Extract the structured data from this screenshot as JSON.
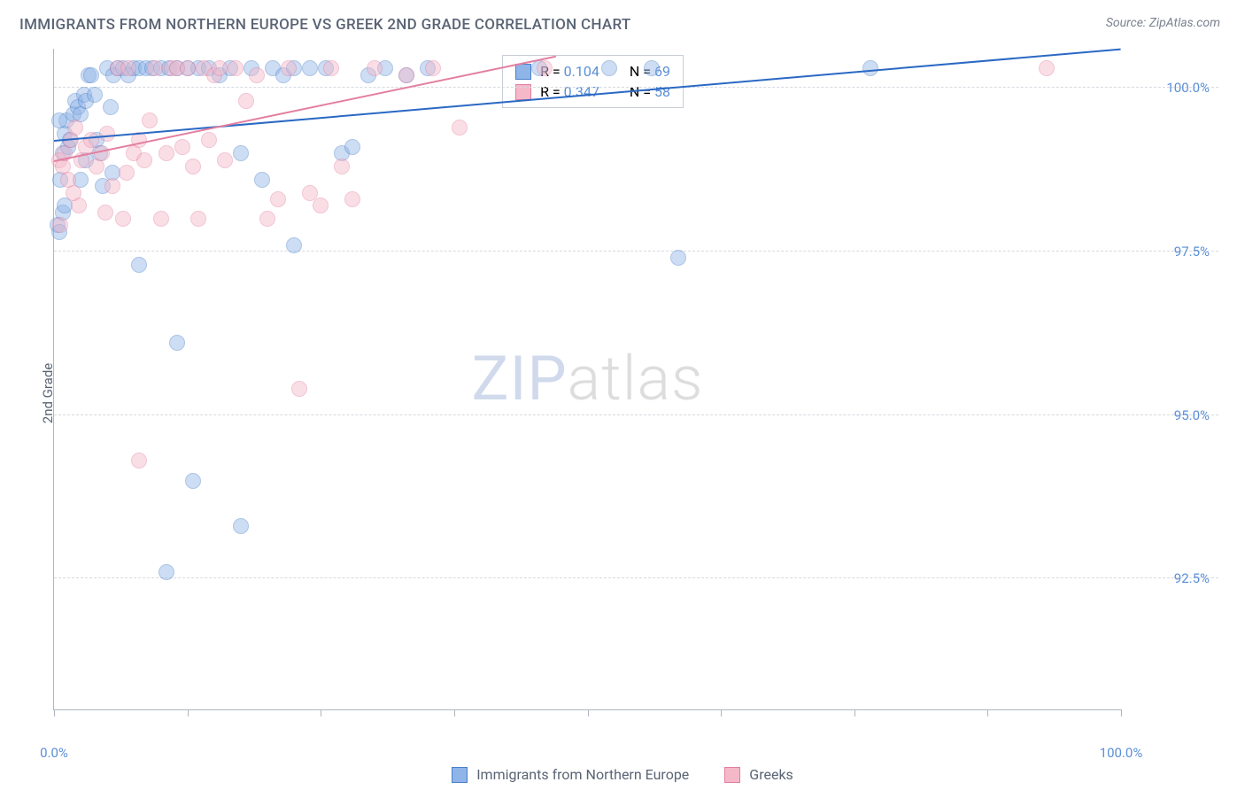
{
  "title": "IMMIGRANTS FROM NORTHERN EUROPE VS GREEK 2ND GRADE CORRELATION CHART",
  "source_label": "Source: ZipAtlas.com",
  "ylabel": "2nd Grade",
  "watermark": {
    "part1": "ZIP",
    "part2": "atlas"
  },
  "chart": {
    "type": "scatter",
    "xlim": [
      0,
      100
    ],
    "ylim": [
      90.5,
      100.6
    ],
    "xtick_positions": [
      0,
      12.5,
      25,
      37.5,
      50,
      62.5,
      75,
      87.5,
      100
    ],
    "xtick_labels": {
      "0": "0.0%",
      "100": "100.0%"
    },
    "ytick_positions": [
      92.5,
      95.0,
      97.5,
      100.0
    ],
    "ytick_labels": [
      "92.5%",
      "95.0%",
      "97.5%",
      "100.0%"
    ],
    "grid_color": "#d5d9df",
    "axis_color": "#b0b6c0",
    "label_color": "#5b8fd6",
    "background_color": "#ffffff",
    "point_radius": 9,
    "point_opacity": 0.45,
    "series": [
      {
        "name": "Immigrants from Northern Europe",
        "fill": "#8fb4e8",
        "stroke": "#4a7fc9",
        "trend_color": "#2a68c4",
        "R": "0.104",
        "N": "69",
        "trend": {
          "x1": 0,
          "y1": 99.2,
          "x2": 100,
          "y2": 100.6
        },
        "points": [
          [
            0.3,
            97.9
          ],
          [
            0.5,
            97.8
          ],
          [
            0.6,
            98.6
          ],
          [
            0.8,
            99.0
          ],
          [
            1.0,
            99.3
          ],
          [
            1.2,
            99.5
          ],
          [
            1.3,
            99.1
          ],
          [
            1.5,
            99.2
          ],
          [
            1.8,
            99.6
          ],
          [
            2.0,
            99.8
          ],
          [
            2.2,
            99.7
          ],
          [
            2.5,
            99.6
          ],
          [
            2.8,
            99.9
          ],
          [
            3.0,
            99.8
          ],
          [
            3.2,
            100.2
          ],
          [
            3.5,
            100.2
          ],
          [
            3.8,
            99.9
          ],
          [
            4.0,
            99.2
          ],
          [
            4.3,
            99.0
          ],
          [
            4.6,
            98.5
          ],
          [
            5.0,
            100.3
          ],
          [
            5.3,
            99.7
          ],
          [
            5.6,
            100.2
          ],
          [
            6.0,
            100.3
          ],
          [
            6.5,
            100.3
          ],
          [
            7.0,
            100.2
          ],
          [
            7.5,
            100.3
          ],
          [
            8.0,
            100.3
          ],
          [
            8.6,
            100.3
          ],
          [
            9.2,
            100.3
          ],
          [
            10.0,
            100.3
          ],
          [
            10.8,
            100.3
          ],
          [
            11.5,
            100.3
          ],
          [
            12.5,
            100.3
          ],
          [
            13.5,
            100.3
          ],
          [
            14.5,
            100.3
          ],
          [
            15.5,
            100.2
          ],
          [
            16.5,
            100.3
          ],
          [
            17.5,
            99.0
          ],
          [
            18.5,
            100.3
          ],
          [
            19.5,
            98.6
          ],
          [
            20.5,
            100.3
          ],
          [
            21.5,
            100.2
          ],
          [
            22.5,
            100.3
          ],
          [
            24.0,
            100.3
          ],
          [
            25.5,
            100.3
          ],
          [
            27.0,
            99.0
          ],
          [
            28.0,
            99.1
          ],
          [
            29.5,
            100.2
          ],
          [
            31.0,
            100.3
          ],
          [
            33.0,
            100.2
          ],
          [
            35.0,
            100.3
          ],
          [
            45.5,
            100.3
          ],
          [
            52.0,
            100.3
          ],
          [
            56.0,
            100.3
          ],
          [
            58.5,
            97.4
          ],
          [
            76.5,
            100.3
          ],
          [
            8.0,
            97.3
          ],
          [
            11.5,
            96.1
          ],
          [
            13.0,
            94.0
          ],
          [
            17.5,
            93.3
          ],
          [
            10.5,
            92.6
          ],
          [
            22.5,
            97.6
          ],
          [
            0.8,
            98.1
          ],
          [
            0.5,
            99.5
          ],
          [
            1.0,
            98.2
          ],
          [
            2.5,
            98.6
          ],
          [
            3.0,
            98.9
          ],
          [
            5.5,
            98.7
          ]
        ]
      },
      {
        "name": "Greeks",
        "fill": "#f4b8c8",
        "stroke": "#e37fa0",
        "trend_color": "#e37fa0",
        "R": "0.347",
        "N": "58",
        "trend": {
          "x1": 0,
          "y1": 98.9,
          "x2": 47,
          "y2": 100.5
        },
        "points": [
          [
            0.5,
            98.9
          ],
          [
            0.8,
            98.8
          ],
          [
            1.0,
            99.0
          ],
          [
            1.3,
            98.6
          ],
          [
            1.6,
            99.2
          ],
          [
            2.0,
            99.4
          ],
          [
            2.3,
            98.2
          ],
          [
            2.6,
            98.9
          ],
          [
            3.0,
            99.1
          ],
          [
            3.5,
            99.2
          ],
          [
            4.0,
            98.8
          ],
          [
            4.5,
            99.0
          ],
          [
            5.0,
            99.3
          ],
          [
            5.5,
            98.5
          ],
          [
            6.0,
            100.3
          ],
          [
            6.5,
            98.0
          ],
          [
            7.0,
            100.3
          ],
          [
            7.5,
            99.0
          ],
          [
            8.0,
            99.2
          ],
          [
            8.5,
            98.9
          ],
          [
            9.0,
            99.5
          ],
          [
            9.5,
            100.3
          ],
          [
            10.0,
            98.0
          ],
          [
            10.5,
            99.0
          ],
          [
            11.0,
            100.3
          ],
          [
            11.5,
            100.3
          ],
          [
            12.0,
            99.1
          ],
          [
            12.5,
            100.3
          ],
          [
            13.0,
            98.8
          ],
          [
            13.5,
            98.0
          ],
          [
            14.0,
            100.3
          ],
          [
            14.5,
            99.2
          ],
          [
            15.0,
            100.2
          ],
          [
            15.5,
            100.3
          ],
          [
            16.0,
            98.9
          ],
          [
            17.0,
            100.3
          ],
          [
            18.0,
            99.8
          ],
          [
            19.0,
            100.2
          ],
          [
            20.0,
            98.0
          ],
          [
            21.0,
            98.3
          ],
          [
            22.0,
            100.3
          ],
          [
            23.0,
            95.4
          ],
          [
            24.0,
            98.4
          ],
          [
            25.0,
            98.2
          ],
          [
            26.0,
            100.3
          ],
          [
            27.0,
            98.8
          ],
          [
            28.0,
            98.3
          ],
          [
            30.0,
            100.3
          ],
          [
            33.0,
            100.2
          ],
          [
            35.5,
            100.3
          ],
          [
            38.0,
            99.4
          ],
          [
            46.0,
            100.3
          ],
          [
            93.0,
            100.3
          ],
          [
            8.0,
            94.3
          ],
          [
            0.6,
            97.9
          ],
          [
            1.8,
            98.4
          ],
          [
            4.8,
            98.1
          ],
          [
            6.8,
            98.7
          ]
        ]
      }
    ]
  },
  "stats_box": {
    "r_prefix": "R = ",
    "n_prefix": "N = "
  },
  "legend": {
    "item1": "Immigrants from Northern Europe",
    "item2": "Greeks"
  }
}
